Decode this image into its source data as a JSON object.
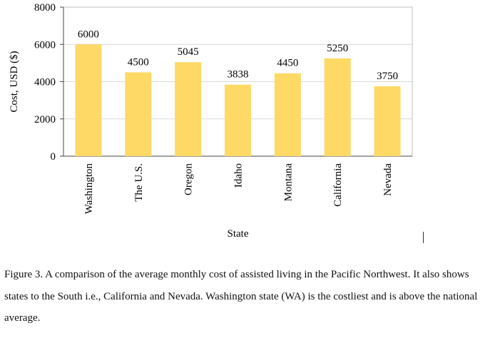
{
  "chart_data": {
    "type": "bar",
    "categories": [
      "Washington",
      "The U.S.",
      "Oregon",
      "Idaho",
      "Montana",
      "California",
      "Nevada"
    ],
    "values": [
      6000,
      4500,
      5045,
      3838,
      4450,
      5250,
      3750
    ],
    "data_labels": [
      "6000",
      "4500",
      "5045",
      "3838",
      "4450",
      "5250",
      "3750"
    ],
    "title": "",
    "xlabel": "State",
    "ylabel": "Cost, USD ($)",
    "ylim": [
      0,
      8000
    ],
    "yticks": [
      "0",
      "2000",
      "4000",
      "6000",
      "8000"
    ],
    "grid": true,
    "bar_color": "#FFD966",
    "grid_color": "#D9D9D9"
  },
  "caption": "Figure 3. A comparison of the average monthly cost of assisted living in the Pacific Northwest. It also shows states to the South i.e., California and Nevada. Washington state (WA) is the costliest and is above the national average."
}
